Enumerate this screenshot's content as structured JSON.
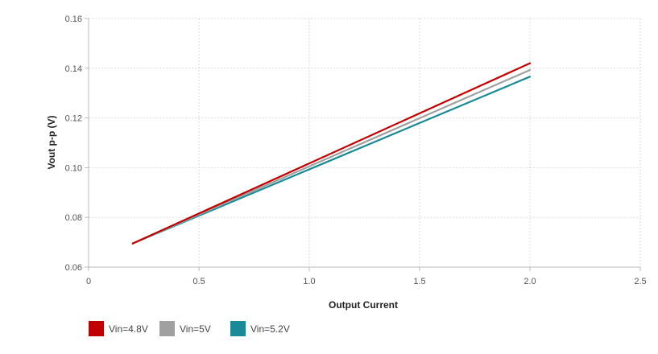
{
  "chart_data": {
    "type": "line",
    "title": "",
    "xlabel": "Output Current",
    "ylabel": "Vout p-p (V)",
    "xlim": [
      0,
      2.5
    ],
    "ylim": [
      0.06,
      0.16
    ],
    "x_ticks": [
      "0",
      "0.5",
      "1.0",
      "1.5",
      "2.0",
      "2.5"
    ],
    "y_ticks": [
      "0.06",
      "0.08",
      "0.10",
      "0.12",
      "0.14",
      "0.16"
    ],
    "grid": true,
    "legend_position": "bottom-left",
    "series": [
      {
        "name": "Vin=4.8V",
        "color": "#c00000",
        "x": [
          0.2,
          2.0
        ],
        "y": [
          0.0695,
          0.142
        ]
      },
      {
        "name": "Vin=5V",
        "color": "#a0a0a0",
        "x": [
          0.2,
          2.0
        ],
        "y": [
          0.0695,
          0.1393
        ]
      },
      {
        "name": "Vin=5.2V",
        "color": "#1a8a96",
        "x": [
          0.2,
          2.0
        ],
        "y": [
          0.0695,
          0.1366
        ]
      }
    ]
  }
}
